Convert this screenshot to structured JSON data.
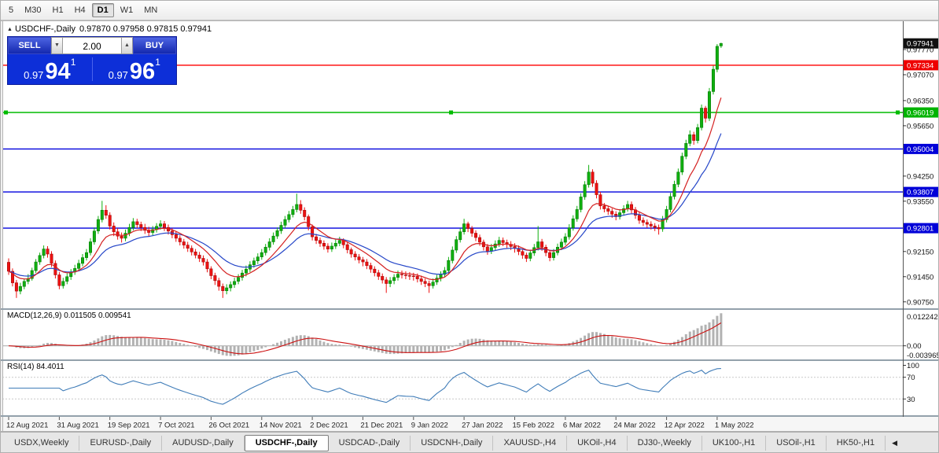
{
  "toolbar": {
    "timeframes": [
      "5",
      "M30",
      "H1",
      "H4",
      "D1",
      "W1",
      "MN"
    ],
    "active": "D1"
  },
  "chart": {
    "title": "USDCHF-,Daily",
    "ohlc_text": "0.97870 0.97958 0.97815 0.97941",
    "collapse_icon": "▲",
    "one_click": {
      "sell_label": "SELL",
      "buy_label": "BUY",
      "volume": "2.00",
      "decrease_icon": "▼",
      "increase_icon": "▲",
      "bid_prefix": "0.97",
      "bid_big": "94",
      "bid_sup": "1",
      "ask_prefix": "0.97",
      "ask_big": "96",
      "ask_sup": "1"
    },
    "price_axis": [
      {
        "text": "0.97941",
        "price": 0.97941,
        "bg": "#101010",
        "fg": "#ffffff"
      },
      {
        "text": "0.97770",
        "price": 0.9777
      },
      {
        "text": "0.97334",
        "price": 0.97334,
        "bg": "#ee0000",
        "fg": "#ffffff"
      },
      {
        "text": "0.97070",
        "price": 0.9707
      },
      {
        "text": "0.96350",
        "price": 0.9635
      },
      {
        "text": "0.96019",
        "price": 0.96019,
        "bg": "#00b300",
        "fg": "#ffffff"
      },
      {
        "text": "0.95650",
        "price": 0.9565
      },
      {
        "text": "0.95004",
        "price": 0.95004,
        "bg": "#0000d8",
        "fg": "#ffffff"
      },
      {
        "text": "0.94250",
        "price": 0.9425
      },
      {
        "text": "0.93807",
        "price": 0.93807,
        "bg": "#0000d8",
        "fg": "#ffffff"
      },
      {
        "text": "0.93550",
        "price": 0.9355
      },
      {
        "text": "0.92801",
        "price": 0.92801,
        "bg": "#0000d8",
        "fg": "#ffffff"
      },
      {
        "text": "0.92150",
        "price": 0.9215
      },
      {
        "text": "0.91450",
        "price": 0.9145
      },
      {
        "text": "0.90750",
        "price": 0.9075
      }
    ]
  },
  "macd_panel": {
    "label": "MACD(12,26,9) 0.011505 0.009541",
    "axis_top": "0.012242",
    "axis_zero": "0.00",
    "axis_bottom": "-0.003965"
  },
  "rsi_panel": {
    "label": "RSI(14) 84.4011",
    "levels": [
      "100",
      "70",
      "30"
    ]
  },
  "tabs": {
    "items": [
      "USDX,Weekly",
      "EURUSD-,Daily",
      "AUDUSD-,Daily",
      "USDCHF-,Daily",
      "USDCAD-,Daily",
      "USDCNH-,Daily",
      "XAUUSD-,H4",
      "UKOil-,H4",
      "DJ30-,Weekly",
      "UK100-,H1",
      "USOil-,H1",
      "HK50-,H1"
    ],
    "active": "USDCHF-,Daily",
    "scroll_icon": "◀"
  },
  "chart_data": {
    "type": "candlestick",
    "symbol": "USDCHF",
    "timeframe": "Daily",
    "title": "USDCHF-,Daily",
    "current": {
      "open": 0.9787,
      "high": 0.97958,
      "low": 0.97815,
      "close": 0.97941
    },
    "price_range": {
      "top": 0.9847,
      "bottom": 0.9068
    },
    "up_color": "#0faf0f",
    "up_border": "#0a7d0a",
    "down_color": "#ee1111",
    "down_border": "#a50d0d",
    "overlays": {
      "ma_fast": {
        "type": "EMA",
        "period": 10,
        "color": "#d42020"
      },
      "ma_slow": {
        "type": "EMA",
        "period": 20,
        "color": "#2546c8"
      }
    },
    "indicators": [
      {
        "name": "MACD",
        "params": [
          12,
          26,
          9
        ],
        "values_text": [
          "0.011505",
          "0.009541"
        ]
      },
      {
        "name": "RSI",
        "params": [
          14
        ],
        "values_text": [
          "84.4011"
        ]
      }
    ],
    "horizontal_lines": [
      {
        "price": 0.97334,
        "color": "#ff0000",
        "selected": false
      },
      {
        "price": 0.96019,
        "color": "#00bb00",
        "selected": true
      },
      {
        "price": 0.95004,
        "color": "#0000dd",
        "selected": false
      },
      {
        "price": 0.93807,
        "color": "#0000dd",
        "selected": false
      },
      {
        "price": 0.92801,
        "color": "#0000dd",
        "selected": false
      }
    ],
    "x_labels": [
      "12 Aug 2021",
      "31 Aug 2021",
      "19 Sep 2021",
      "7 Oct 2021",
      "26 Oct 2021",
      "14 Nov 2021",
      "2 Dec 2021",
      "21 Dec 2021",
      "9 Jan 2022",
      "27 Jan 2022",
      "15 Feb 2022",
      "6 Mar 2022",
      "24 Mar 2022",
      "12 Apr 2022",
      "1 May 2022"
    ],
    "candles_per_label": 13,
    "candles": [
      [
        0.9185,
        0.9196,
        0.915,
        0.916
      ],
      [
        0.916,
        0.9168,
        0.9118,
        0.9128
      ],
      [
        0.9128,
        0.9136,
        0.9086,
        0.9105
      ],
      [
        0.9105,
        0.9128,
        0.9096,
        0.9118
      ],
      [
        0.9118,
        0.914,
        0.911,
        0.9132
      ],
      [
        0.9132,
        0.9152,
        0.9124,
        0.914
      ],
      [
        0.914,
        0.917,
        0.9134,
        0.9162
      ],
      [
        0.9162,
        0.9194,
        0.9155,
        0.9186
      ],
      [
        0.9186,
        0.9212,
        0.9178,
        0.9204
      ],
      [
        0.9204,
        0.9232,
        0.9196,
        0.9222
      ],
      [
        0.9222,
        0.923,
        0.9198,
        0.9208
      ],
      [
        0.9208,
        0.9216,
        0.9172,
        0.9182
      ],
      [
        0.9182,
        0.919,
        0.914,
        0.915
      ],
      [
        0.915,
        0.9158,
        0.911,
        0.912
      ],
      [
        0.912,
        0.9142,
        0.9112,
        0.9132
      ],
      [
        0.9132,
        0.9154,
        0.9124,
        0.9145
      ],
      [
        0.9145,
        0.9166,
        0.9136,
        0.9158
      ],
      [
        0.9158,
        0.9178,
        0.915,
        0.9168
      ],
      [
        0.9168,
        0.9192,
        0.916,
        0.9182
      ],
      [
        0.9182,
        0.9208,
        0.9174,
        0.9198
      ],
      [
        0.9198,
        0.9222,
        0.919,
        0.9212
      ],
      [
        0.9212,
        0.9252,
        0.9204,
        0.9242
      ],
      [
        0.9242,
        0.9282,
        0.9234,
        0.9272
      ],
      [
        0.9272,
        0.9314,
        0.9264,
        0.9304
      ],
      [
        0.9304,
        0.9356,
        0.9296,
        0.933
      ],
      [
        0.933,
        0.9344,
        0.9306,
        0.9316
      ],
      [
        0.9316,
        0.9324,
        0.9276,
        0.9286
      ],
      [
        0.9286,
        0.9296,
        0.9258,
        0.927
      ],
      [
        0.927,
        0.928,
        0.9248,
        0.9258
      ],
      [
        0.9258,
        0.9268,
        0.924,
        0.9252
      ],
      [
        0.9252,
        0.9276,
        0.9244,
        0.9266
      ],
      [
        0.9266,
        0.9292,
        0.9258,
        0.9282
      ],
      [
        0.9282,
        0.9308,
        0.9274,
        0.9298
      ],
      [
        0.9298,
        0.9306,
        0.928,
        0.929
      ],
      [
        0.929,
        0.9298,
        0.9272,
        0.9282
      ],
      [
        0.9282,
        0.9292,
        0.9264,
        0.9274
      ],
      [
        0.9274,
        0.9284,
        0.9256,
        0.9268
      ],
      [
        0.9268,
        0.9286,
        0.926,
        0.9276
      ],
      [
        0.9276,
        0.9294,
        0.9268,
        0.9285
      ],
      [
        0.9285,
        0.9302,
        0.9276,
        0.9292
      ],
      [
        0.9292,
        0.93,
        0.9272,
        0.9282
      ],
      [
        0.9282,
        0.929,
        0.9262,
        0.9272
      ],
      [
        0.9272,
        0.928,
        0.9252,
        0.9262
      ],
      [
        0.9262,
        0.927,
        0.9242,
        0.9252
      ],
      [
        0.9252,
        0.926,
        0.9232,
        0.9242
      ],
      [
        0.9242,
        0.925,
        0.9223,
        0.9233
      ],
      [
        0.9233,
        0.9242,
        0.9214,
        0.9224
      ],
      [
        0.9224,
        0.9232,
        0.9204,
        0.9214
      ],
      [
        0.9214,
        0.9222,
        0.9196,
        0.9205
      ],
      [
        0.9205,
        0.9214,
        0.9186,
        0.9196
      ],
      [
        0.9196,
        0.9204,
        0.9176,
        0.9186
      ],
      [
        0.9186,
        0.9194,
        0.9157,
        0.9167
      ],
      [
        0.9167,
        0.9174,
        0.9138,
        0.9148
      ],
      [
        0.9148,
        0.9156,
        0.9122,
        0.9134
      ],
      [
        0.9134,
        0.9142,
        0.9106,
        0.9118
      ],
      [
        0.9118,
        0.9126,
        0.9086,
        0.9106
      ],
      [
        0.9106,
        0.9124,
        0.9096,
        0.9114
      ],
      [
        0.9114,
        0.9132,
        0.9104,
        0.9123
      ],
      [
        0.9123,
        0.9142,
        0.9114,
        0.9132
      ],
      [
        0.9132,
        0.9152,
        0.9124,
        0.9143
      ],
      [
        0.9143,
        0.9164,
        0.9134,
        0.9155
      ],
      [
        0.9155,
        0.9176,
        0.9146,
        0.9166
      ],
      [
        0.9166,
        0.9188,
        0.9158,
        0.9178
      ],
      [
        0.9178,
        0.9198,
        0.917,
        0.9189
      ],
      [
        0.9189,
        0.921,
        0.918,
        0.92
      ],
      [
        0.92,
        0.9222,
        0.9192,
        0.9212
      ],
      [
        0.9212,
        0.9236,
        0.9204,
        0.9227
      ],
      [
        0.9227,
        0.9252,
        0.9218,
        0.9242
      ],
      [
        0.9242,
        0.9268,
        0.9234,
        0.9258
      ],
      [
        0.9258,
        0.9282,
        0.925,
        0.9273
      ],
      [
        0.9273,
        0.9298,
        0.9264,
        0.9288
      ],
      [
        0.9288,
        0.9314,
        0.928,
        0.9304
      ],
      [
        0.9304,
        0.9328,
        0.9296,
        0.9318
      ],
      [
        0.9318,
        0.9342,
        0.931,
        0.9332
      ],
      [
        0.9332,
        0.9376,
        0.9324,
        0.9346
      ],
      [
        0.9346,
        0.9358,
        0.932,
        0.933
      ],
      [
        0.933,
        0.9338,
        0.9302,
        0.9312
      ],
      [
        0.9312,
        0.9318,
        0.9274,
        0.9284
      ],
      [
        0.9284,
        0.929,
        0.9246,
        0.9256
      ],
      [
        0.9256,
        0.9264,
        0.9236,
        0.9246
      ],
      [
        0.9246,
        0.9254,
        0.9228,
        0.9238
      ],
      [
        0.9238,
        0.9246,
        0.922,
        0.923
      ],
      [
        0.923,
        0.9238,
        0.9212,
        0.9222
      ],
      [
        0.9222,
        0.924,
        0.9214,
        0.923
      ],
      [
        0.923,
        0.9248,
        0.9222,
        0.9238
      ],
      [
        0.9238,
        0.9256,
        0.923,
        0.9246
      ],
      [
        0.9246,
        0.9252,
        0.9224,
        0.9234
      ],
      [
        0.9234,
        0.924,
        0.921,
        0.922
      ],
      [
        0.922,
        0.9226,
        0.9198,
        0.9208
      ],
      [
        0.9208,
        0.9216,
        0.919,
        0.92
      ],
      [
        0.92,
        0.9208,
        0.9182,
        0.9192
      ],
      [
        0.9192,
        0.92,
        0.9174,
        0.9186
      ],
      [
        0.9186,
        0.9194,
        0.9166,
        0.9176
      ],
      [
        0.9176,
        0.9184,
        0.9156,
        0.9166
      ],
      [
        0.9166,
        0.9174,
        0.9146,
        0.9156
      ],
      [
        0.9156,
        0.9164,
        0.9136,
        0.9146
      ],
      [
        0.9146,
        0.9154,
        0.9126,
        0.9136
      ],
      [
        0.9136,
        0.9144,
        0.91,
        0.9126
      ],
      [
        0.9126,
        0.9144,
        0.9116,
        0.9134
      ],
      [
        0.9134,
        0.9152,
        0.9124,
        0.9143
      ],
      [
        0.9143,
        0.9162,
        0.9134,
        0.9152
      ],
      [
        0.9152,
        0.9162,
        0.914,
        0.915
      ],
      [
        0.915,
        0.916,
        0.9138,
        0.9148
      ],
      [
        0.9148,
        0.9158,
        0.9136,
        0.9147
      ],
      [
        0.9147,
        0.9156,
        0.9134,
        0.9146
      ],
      [
        0.9146,
        0.9154,
        0.9129,
        0.9139
      ],
      [
        0.9139,
        0.9148,
        0.9122,
        0.9132
      ],
      [
        0.9132,
        0.914,
        0.9116,
        0.9126
      ],
      [
        0.9126,
        0.9134,
        0.91,
        0.912
      ],
      [
        0.912,
        0.914,
        0.9112,
        0.913
      ],
      [
        0.913,
        0.915,
        0.9122,
        0.9141
      ],
      [
        0.9141,
        0.916,
        0.9132,
        0.9151
      ],
      [
        0.9151,
        0.9172,
        0.9143,
        0.9162
      ],
      [
        0.9162,
        0.92,
        0.9154,
        0.919
      ],
      [
        0.919,
        0.9229,
        0.9182,
        0.9219
      ],
      [
        0.9219,
        0.9258,
        0.9211,
        0.9248
      ],
      [
        0.9248,
        0.928,
        0.924,
        0.927
      ],
      [
        0.927,
        0.9306,
        0.9262,
        0.9292
      ],
      [
        0.9292,
        0.9298,
        0.9269,
        0.9279
      ],
      [
        0.9279,
        0.9286,
        0.9256,
        0.9266
      ],
      [
        0.9266,
        0.9274,
        0.9244,
        0.9254
      ],
      [
        0.9254,
        0.9262,
        0.9231,
        0.9241
      ],
      [
        0.9241,
        0.9248,
        0.9218,
        0.9228
      ],
      [
        0.9228,
        0.9236,
        0.9206,
        0.9216
      ],
      [
        0.9216,
        0.9236,
        0.9208,
        0.9226
      ],
      [
        0.9226,
        0.9246,
        0.9218,
        0.9236
      ],
      [
        0.9236,
        0.9256,
        0.9228,
        0.9246
      ],
      [
        0.9246,
        0.9254,
        0.923,
        0.924
      ],
      [
        0.924,
        0.9248,
        0.9225,
        0.9235
      ],
      [
        0.9235,
        0.9244,
        0.9219,
        0.9229
      ],
      [
        0.9229,
        0.9238,
        0.9212,
        0.9224
      ],
      [
        0.9224,
        0.9232,
        0.9205,
        0.9215
      ],
      [
        0.9215,
        0.9222,
        0.9195,
        0.9205
      ],
      [
        0.9205,
        0.9212,
        0.9186,
        0.9196
      ],
      [
        0.9196,
        0.922,
        0.9188,
        0.9211
      ],
      [
        0.9211,
        0.9236,
        0.9203,
        0.9226
      ],
      [
        0.9226,
        0.9286,
        0.9218,
        0.9242
      ],
      [
        0.9242,
        0.925,
        0.9217,
        0.9227
      ],
      [
        0.9227,
        0.9234,
        0.9202,
        0.9212
      ],
      [
        0.9212,
        0.922,
        0.9188,
        0.9198
      ],
      [
        0.9198,
        0.9222,
        0.919,
        0.9212
      ],
      [
        0.9212,
        0.9237,
        0.9204,
        0.9227
      ],
      [
        0.9227,
        0.9251,
        0.9219,
        0.9241
      ],
      [
        0.9241,
        0.9266,
        0.9233,
        0.9256
      ],
      [
        0.9256,
        0.9291,
        0.9248,
        0.9281
      ],
      [
        0.9281,
        0.9316,
        0.9273,
        0.9306
      ],
      [
        0.9306,
        0.9342,
        0.9298,
        0.9332
      ],
      [
        0.9332,
        0.9377,
        0.9324,
        0.9367
      ],
      [
        0.9367,
        0.9411,
        0.9359,
        0.9401
      ],
      [
        0.9401,
        0.9456,
        0.9393,
        0.9436
      ],
      [
        0.9436,
        0.9444,
        0.9395,
        0.9405
      ],
      [
        0.9405,
        0.9413,
        0.9363,
        0.9373
      ],
      [
        0.9373,
        0.9381,
        0.9332,
        0.9342
      ],
      [
        0.9342,
        0.935,
        0.9324,
        0.9334
      ],
      [
        0.9334,
        0.9342,
        0.9317,
        0.9327
      ],
      [
        0.9327,
        0.9335,
        0.9309,
        0.9319
      ],
      [
        0.9319,
        0.9327,
        0.9302,
        0.9312
      ],
      [
        0.9312,
        0.9333,
        0.9304,
        0.9323
      ],
      [
        0.9323,
        0.9344,
        0.9315,
        0.9334
      ],
      [
        0.9334,
        0.9356,
        0.9326,
        0.9346
      ],
      [
        0.9346,
        0.9354,
        0.9321,
        0.9331
      ],
      [
        0.9331,
        0.9339,
        0.9306,
        0.9316
      ],
      [
        0.9316,
        0.9324,
        0.9292,
        0.9302
      ],
      [
        0.9302,
        0.931,
        0.9286,
        0.9296
      ],
      [
        0.9296,
        0.9304,
        0.9281,
        0.9291
      ],
      [
        0.9291,
        0.9299,
        0.9276,
        0.9286
      ],
      [
        0.9286,
        0.9294,
        0.9272,
        0.9282
      ],
      [
        0.9282,
        0.929,
        0.9262,
        0.9278
      ],
      [
        0.9278,
        0.9314,
        0.927,
        0.9304
      ],
      [
        0.9304,
        0.9342,
        0.9296,
        0.9332
      ],
      [
        0.9332,
        0.9378,
        0.9324,
        0.9368
      ],
      [
        0.9368,
        0.9412,
        0.936,
        0.9402
      ],
      [
        0.9402,
        0.9446,
        0.9394,
        0.9436
      ],
      [
        0.9436,
        0.949,
        0.9428,
        0.948
      ],
      [
        0.948,
        0.9526,
        0.9472,
        0.9516
      ],
      [
        0.9516,
        0.9552,
        0.9508,
        0.954
      ],
      [
        0.954,
        0.9548,
        0.9512,
        0.9524
      ],
      [
        0.9524,
        0.957,
        0.9516,
        0.956
      ],
      [
        0.956,
        0.9624,
        0.9552,
        0.9614
      ],
      [
        0.9614,
        0.962,
        0.9574,
        0.9586
      ],
      [
        0.9586,
        0.967,
        0.9578,
        0.966
      ],
      [
        0.966,
        0.9732,
        0.9652,
        0.9722
      ],
      [
        0.9722,
        0.9792,
        0.9714,
        0.9786
      ],
      [
        0.9787,
        0.97958,
        0.97815,
        0.97941
      ]
    ]
  }
}
